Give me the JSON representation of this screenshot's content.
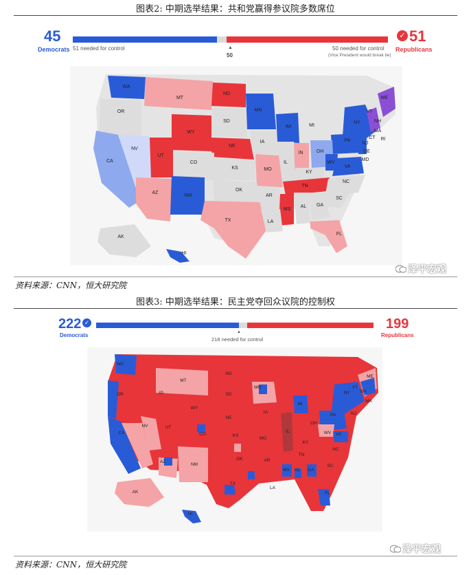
{
  "figure2": {
    "title": "图表2:   中期选举结果：共和党赢得参议院多数席位",
    "dem_count": "45",
    "dem_label": "Democrats",
    "rep_count": "51",
    "rep_label": "Republicans",
    "dem_needed": "51 needed for control",
    "rep_needed": "50 needed for control",
    "rep_note": "(Vice President would break tie)",
    "center_value": "50",
    "source": "资料来源：CNN，恒大研究院",
    "watermark": "泽平宏观",
    "states": [
      "WA",
      "MT",
      "ND",
      "MN",
      "ME",
      "OR",
      "SD",
      "WI",
      "VT",
      "NH",
      "MI",
      "NY",
      "MA",
      "CT",
      "RI",
      "WY",
      "NV",
      "NE",
      "IA",
      "PA",
      "NJ",
      "OH",
      "DE",
      "IN",
      "CA",
      "UT",
      "CO",
      "KS",
      "MO",
      "IL",
      "KY",
      "WV",
      "VA",
      "MD",
      "TN",
      "NC",
      "AZ",
      "NM",
      "OK",
      "AR",
      "SC",
      "MS",
      "AL",
      "GA",
      "TX",
      "LA",
      "FL",
      "AK",
      "HI"
    ]
  },
  "figure3": {
    "title": "图表3:   中期选举结果：民主党夺回众议院的控制权",
    "dem_count": "222",
    "dem_label": "Democrats",
    "rep_count": "199",
    "rep_label": "Republicans",
    "needed": "218 needed for control",
    "source": "资料来源：CNN，恒大研究院",
    "watermark": "泽平宏观",
    "states": [
      "WA",
      "MT",
      "ND",
      "MN",
      "ME",
      "OR",
      "ID",
      "SD",
      "VT",
      "NH",
      "WY",
      "MI",
      "NY",
      "MA",
      "NV",
      "NE",
      "IA",
      "PA",
      "OH",
      "CA",
      "UT",
      "CO",
      "KS",
      "MO",
      "IL",
      "KY",
      "WV",
      "VA",
      "NJ",
      "TN",
      "NC",
      "AZ",
      "NM",
      "OK",
      "AR",
      "SC",
      "MS",
      "AL",
      "GA",
      "TX",
      "LA",
      "FL",
      "AK",
      "HI"
    ]
  },
  "colors": {
    "dem": "#2a5bd7",
    "rep": "#e8353a",
    "tossup": "#dddddd",
    "lean_dem": "#8ea9ee",
    "lean_rep": "#f4a4a6",
    "independent": "#8b4fd6"
  }
}
